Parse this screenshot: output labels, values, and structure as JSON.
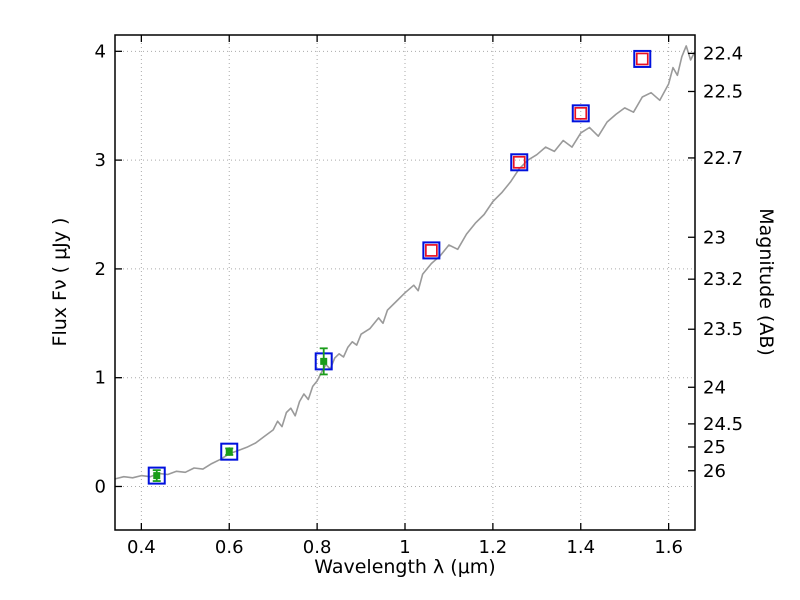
{
  "figure": {
    "xlabel": "Wavelength  λ (μm)",
    "ylabel_left": "Flux  Fν  ( μJy )",
    "ylabel_right": "Magnitude (AB)"
  },
  "chart_data": {
    "type": "line",
    "title": "",
    "xlabel": "Wavelength λ (μm)",
    "ylabel": "Flux Fν ( μJy )",
    "ylabel_right": "Magnitude (AB)",
    "xlim": [
      0.34,
      1.66
    ],
    "ylim": [
      -0.4,
      4.15
    ],
    "x_ticks": [
      0.4,
      0.6,
      0.8,
      1.0,
      1.2,
      1.4,
      1.6
    ],
    "x_tick_labels": [
      "0.4",
      "0.6",
      "0.8",
      "1",
      "1.2",
      "1.4",
      "1.6"
    ],
    "y_ticks": [
      0,
      1,
      2,
      3,
      4
    ],
    "y_tick_labels": [
      "0",
      "1",
      "2",
      "3",
      "4"
    ],
    "mag_zero_point": 23.9,
    "mag_ticks": [
      22.4,
      22.5,
      22.7,
      23,
      23.2,
      23.5,
      24,
      24.5,
      25,
      26
    ],
    "mag_tick_labels": [
      "22.4",
      "22.5",
      "22.7",
      "23",
      "23.2",
      "23.5",
      "24",
      "24.5",
      "25",
      "26"
    ],
    "grid": {
      "show": true,
      "style": "dotted",
      "color": "#aaaaaa"
    },
    "colors": {
      "spectrum": "#9a9a9a",
      "model_square": "#0011dd",
      "observed_square": "#e81123",
      "flux_point": "#1a9c1a",
      "frame": "#000000"
    },
    "series": [
      {
        "name": "model-spectrum",
        "type": "line",
        "color": "#9a9a9a",
        "points": [
          [
            0.34,
            0.07
          ],
          [
            0.36,
            0.09
          ],
          [
            0.38,
            0.08
          ],
          [
            0.4,
            0.1
          ],
          [
            0.42,
            0.09
          ],
          [
            0.44,
            0.12
          ],
          [
            0.46,
            0.11
          ],
          [
            0.48,
            0.14
          ],
          [
            0.5,
            0.13
          ],
          [
            0.52,
            0.17
          ],
          [
            0.54,
            0.16
          ],
          [
            0.56,
            0.21
          ],
          [
            0.58,
            0.25
          ],
          [
            0.6,
            0.3
          ],
          [
            0.62,
            0.33
          ],
          [
            0.64,
            0.36
          ],
          [
            0.66,
            0.4
          ],
          [
            0.68,
            0.46
          ],
          [
            0.7,
            0.52
          ],
          [
            0.71,
            0.6
          ],
          [
            0.72,
            0.55
          ],
          [
            0.73,
            0.68
          ],
          [
            0.74,
            0.72
          ],
          [
            0.75,
            0.65
          ],
          [
            0.76,
            0.78
          ],
          [
            0.77,
            0.85
          ],
          [
            0.78,
            0.8
          ],
          [
            0.79,
            0.92
          ],
          [
            0.8,
            0.97
          ],
          [
            0.81,
            1.05
          ],
          [
            0.82,
            1.12
          ],
          [
            0.83,
            1.08
          ],
          [
            0.84,
            1.18
          ],
          [
            0.85,
            1.22
          ],
          [
            0.86,
            1.19
          ],
          [
            0.87,
            1.28
          ],
          [
            0.88,
            1.33
          ],
          [
            0.89,
            1.3
          ],
          [
            0.9,
            1.4
          ],
          [
            0.92,
            1.45
          ],
          [
            0.94,
            1.55
          ],
          [
            0.95,
            1.5
          ],
          [
            0.96,
            1.62
          ],
          [
            0.98,
            1.7
          ],
          [
            1.0,
            1.78
          ],
          [
            1.02,
            1.85
          ],
          [
            1.03,
            1.8
          ],
          [
            1.04,
            1.95
          ],
          [
            1.06,
            2.05
          ],
          [
            1.08,
            2.12
          ],
          [
            1.1,
            2.22
          ],
          [
            1.12,
            2.18
          ],
          [
            1.14,
            2.32
          ],
          [
            1.16,
            2.42
          ],
          [
            1.18,
            2.5
          ],
          [
            1.2,
            2.62
          ],
          [
            1.22,
            2.7
          ],
          [
            1.24,
            2.8
          ],
          [
            1.26,
            2.92
          ],
          [
            1.28,
            3.0
          ],
          [
            1.3,
            3.05
          ],
          [
            1.32,
            3.12
          ],
          [
            1.34,
            3.08
          ],
          [
            1.36,
            3.18
          ],
          [
            1.38,
            3.12
          ],
          [
            1.4,
            3.25
          ],
          [
            1.42,
            3.3
          ],
          [
            1.44,
            3.22
          ],
          [
            1.46,
            3.35
          ],
          [
            1.48,
            3.42
          ],
          [
            1.5,
            3.48
          ],
          [
            1.52,
            3.44
          ],
          [
            1.54,
            3.58
          ],
          [
            1.56,
            3.62
          ],
          [
            1.58,
            3.55
          ],
          [
            1.6,
            3.7
          ],
          [
            1.61,
            3.85
          ],
          [
            1.62,
            3.78
          ],
          [
            1.63,
            3.95
          ],
          [
            1.64,
            4.05
          ],
          [
            1.65,
            3.92
          ],
          [
            1.66,
            4.0
          ]
        ]
      },
      {
        "name": "model-photometry",
        "type": "scatter",
        "marker": "open-square",
        "color": "#0011dd",
        "size": 16,
        "points": [
          [
            0.435,
            0.1
          ],
          [
            0.6,
            0.32
          ],
          [
            0.815,
            1.15
          ],
          [
            1.06,
            2.17
          ],
          [
            1.26,
            2.98
          ],
          [
            1.4,
            3.43
          ],
          [
            1.54,
            3.93
          ]
        ]
      },
      {
        "name": "observed-photometry",
        "type": "scatter",
        "marker": "open-square",
        "color": "#e81123",
        "size": 11,
        "points": [
          [
            1.06,
            2.17
          ],
          [
            1.26,
            2.98
          ],
          [
            1.4,
            3.43
          ],
          [
            1.54,
            3.93
          ]
        ]
      },
      {
        "name": "observed-flux",
        "type": "scatter",
        "marker": "filled-square",
        "color": "#1a9c1a",
        "size": 6,
        "points": [
          [
            0.435,
            0.1
          ],
          [
            0.6,
            0.32
          ],
          [
            0.815,
            1.15
          ]
        ],
        "error_y": [
          0.05,
          0.03,
          0.12
        ]
      }
    ]
  }
}
